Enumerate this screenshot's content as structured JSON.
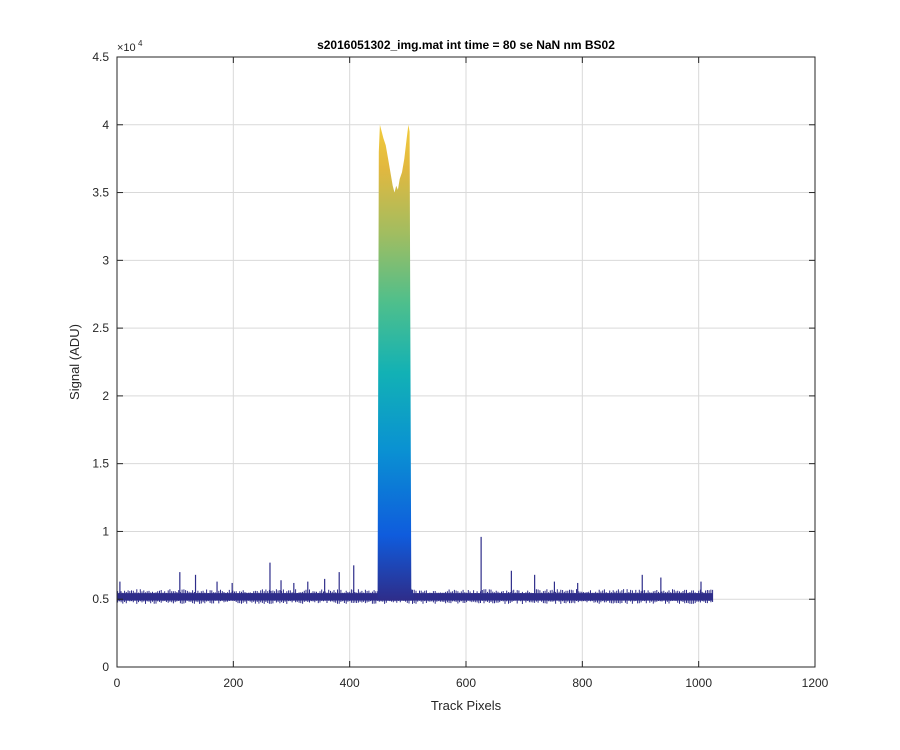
{
  "colors": {
    "background": "#ffffff",
    "axes": "#262626",
    "grid": "#d9d9d9",
    "baseline": "#2e2d8a",
    "colormap": [
      "#2e2d8a",
      "#0f5cdd",
      "#0a92d2",
      "#12b1b5",
      "#4ebf8c",
      "#a2bd60",
      "#e2b83f",
      "#f9d53a",
      "#f8fa0d"
    ]
  },
  "chart_data": {
    "type": "area",
    "title": "s2016051302_img.mat int time = 80 se  NaN nm BS02",
    "xlabel": "Track Pixels",
    "ylabel": "Signal (ADU)",
    "xlim": [
      0,
      1200
    ],
    "ylim": [
      0,
      45000
    ],
    "y_exponent_multiplier": "×10",
    "y_exponent_power": "4",
    "xticks": [
      0,
      200,
      400,
      600,
      800,
      1000,
      1200
    ],
    "xtick_labels": [
      "0",
      "200",
      "400",
      "600",
      "800",
      "1000",
      "1200"
    ],
    "yticks": [
      0,
      5000,
      10000,
      15000,
      20000,
      25000,
      30000,
      35000,
      40000,
      45000
    ],
    "ytick_labels": [
      "0",
      "0.5",
      "1",
      "1.5",
      "2",
      "2.5",
      "3",
      "3.5",
      "4",
      "4.5"
    ],
    "grid": true,
    "colored_by": "signal value",
    "baseline": {
      "x_start": 1,
      "x_end": 1024,
      "lower": 4900,
      "upper": 5450
    },
    "peak": {
      "x": [
        448,
        450,
        452,
        455,
        458,
        462,
        466,
        470,
        474,
        477,
        480,
        483,
        486,
        490,
        494,
        498,
        501,
        503,
        506,
        510
      ],
      "y": [
        5300,
        38000,
        40000,
        39500,
        39000,
        38500,
        37500,
        36500,
        35500,
        35000,
        35500,
        35200,
        36000,
        36500,
        37500,
        39000,
        40000,
        39500,
        5800,
        5300
      ]
    },
    "spikes": {
      "x": [
        5,
        108,
        135,
        172,
        198,
        263,
        282,
        304,
        328,
        357,
        382,
        407,
        626,
        678,
        718,
        752,
        792,
        903,
        935,
        1004
      ],
      "y": [
        6300,
        7000,
        6800,
        6300,
        6200,
        7700,
        6400,
        6200,
        6300,
        6500,
        7000,
        7500,
        9600,
        7100,
        6800,
        6300,
        6200,
        6800,
        6600,
        6300
      ]
    }
  }
}
